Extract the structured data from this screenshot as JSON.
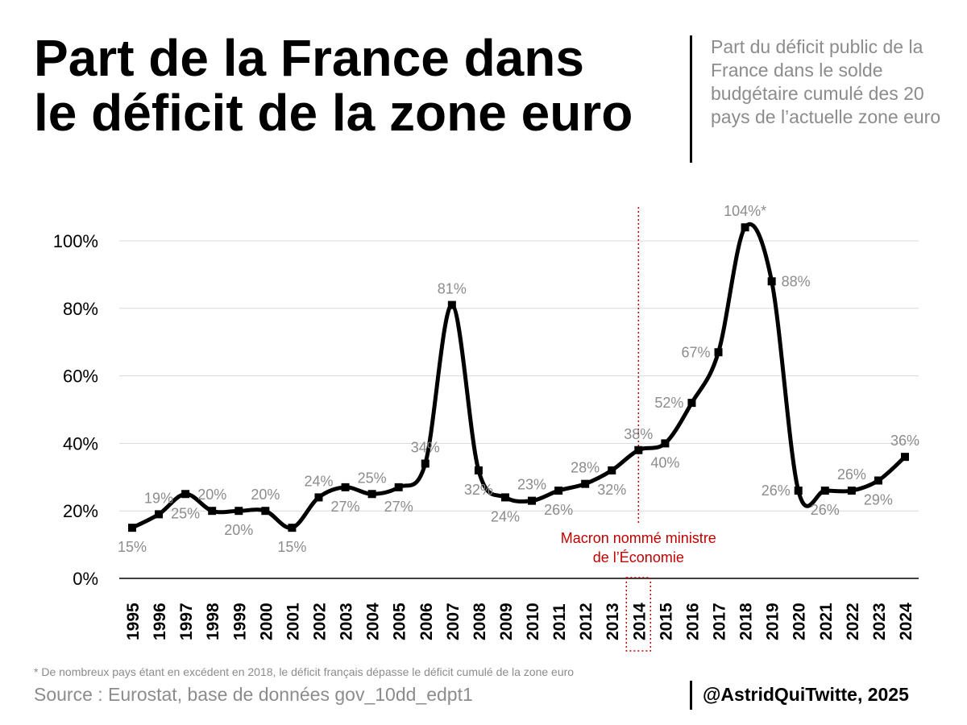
{
  "header": {
    "title_line1": "Part de la France dans",
    "title_line2": "le déficit de la zone euro",
    "subtitle": "Part du déficit public de la France dans le solde budgétaire cumulé des 20 pays de l’actuelle zone euro"
  },
  "footer": {
    "footnote": "* De nombreux pays étant en excédent en 2018, le déficit français dépasse le déficit cumulé de la zone euro",
    "source": "Source : Eurostat, base de données gov_10dd_edpt1",
    "credit": "@AstridQuiTwitte, 2025"
  },
  "colors": {
    "line": "#000000",
    "grid": "#d9d9d9",
    "label": "#8c8c8c",
    "annotation": "#c00000"
  },
  "chart_data": {
    "type": "line",
    "title": "Part de la France dans le déficit de la zone euro",
    "xlabel": "",
    "ylabel": "",
    "ylim": [
      0,
      110
    ],
    "yticks": [
      0,
      20,
      40,
      60,
      80,
      100
    ],
    "ytick_labels": [
      "0%",
      "20%",
      "40%",
      "60%",
      "80%",
      "100%"
    ],
    "grid": true,
    "x": [
      1995,
      1996,
      1997,
      1998,
      1999,
      2000,
      2001,
      2002,
      2003,
      2004,
      2005,
      2006,
      2007,
      2008,
      2009,
      2010,
      2011,
      2012,
      2013,
      2014,
      2015,
      2016,
      2017,
      2018,
      2019,
      2020,
      2021,
      2022,
      2023,
      2024
    ],
    "x_labels": [
      "1995",
      "1996",
      "1997",
      "1998",
      "1999",
      "2000",
      "2001",
      "2002",
      "2003",
      "2004",
      "2005",
      "2006",
      "2007",
      "2008",
      "2009",
      "2010",
      "2011",
      "2012",
      "2013",
      "2014",
      "2015",
      "2016",
      "2017",
      "2018",
      "2019",
      "2020",
      "2021",
      "2022",
      "2023",
      "2024"
    ],
    "series": [
      {
        "name": "Part de la France",
        "values": [
          15,
          19,
          25,
          20,
          20,
          20,
          15,
          24,
          27,
          25,
          27,
          34,
          81,
          32,
          24,
          23,
          26,
          28,
          32,
          38,
          40,
          52,
          67,
          104,
          88,
          26,
          26,
          26,
          29,
          36
        ]
      }
    ],
    "data_labels": [
      "15%",
      "19%",
      "25%",
      "20%",
      "20%",
      "20%",
      "15%",
      "24%",
      "27%",
      "25%",
      "27%",
      "34%",
      "81%",
      "32%",
      "24%",
      "23%",
      "26%",
      "28%",
      "32%",
      "38%",
      "40%",
      "52%",
      "67%",
      "104%*",
      "88%",
      "26%",
      "26%",
      "26%",
      "29%",
      "36%"
    ],
    "data_label_positions": [
      "below",
      "above",
      "below",
      "above",
      "below",
      "above",
      "below",
      "above",
      "below",
      "above",
      "below",
      "above",
      "above",
      "below",
      "below",
      "above",
      "below",
      "above",
      "below",
      "above",
      "below",
      "left",
      "left",
      "above",
      "right",
      "left",
      "below",
      "above",
      "below",
      "above"
    ],
    "annotation": {
      "year": 2014,
      "text_line1": "Macron nommé ministre",
      "text_line2": "de l’Économie"
    }
  }
}
